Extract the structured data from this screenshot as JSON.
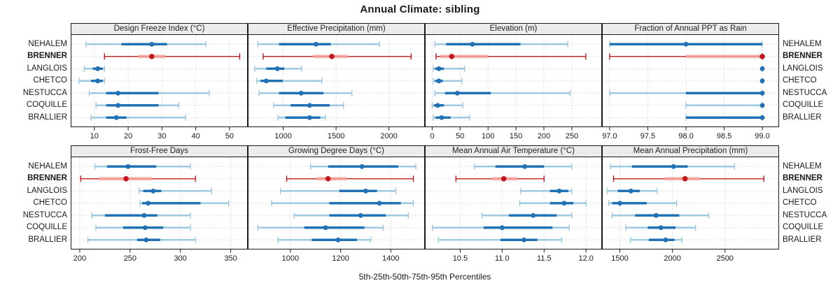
{
  "title": "Annual Climate: sibling",
  "caption": "5th-25th-50th-75th-95th Percentiles",
  "colors": {
    "blue_dark": "#2171B5",
    "blue_light": "#9ECAE1",
    "red_dark": "#C0181D",
    "red_light": "#F5A8A1",
    "grid": "#C9C9C9",
    "strip_bg": "#ECECEC",
    "panel_border": "#1A1A1A",
    "background": "#FFFFFF"
  },
  "chart_data": {
    "type": "dotplot",
    "description": "Trellis dot plot of 5th-25th-50th-75th-95th percentile ranges per site; BRENNER highlighted in red",
    "rows": [
      "NEHALEM",
      "BRENNER",
      "LANGLOIS",
      "CHETCO",
      "NESTUCCA",
      "COQUILLE",
      "BRALLIER"
    ],
    "highlight_row": "BRENNER",
    "percentile_labels": [
      "5th",
      "25th",
      "50th",
      "75th",
      "95th"
    ],
    "legend_position": "none",
    "grid": "dotted",
    "panels": [
      {
        "title": "Design Freeze Index (°C)",
        "band": "top",
        "xlim": [
          3,
          55.4
        ],
        "ticks": [
          10,
          20,
          30,
          40,
          50
        ],
        "tick_labels": [
          "10",
          "20",
          "30",
          "40",
          "50"
        ],
        "values": [
          [
            7.5,
            18,
            27,
            31.5,
            43
          ],
          [
            13,
            23,
            27,
            31,
            53
          ],
          [
            7,
            9.5,
            11,
            12.5,
            13
          ],
          [
            5.5,
            9,
            11,
            12.5,
            13
          ],
          [
            8.5,
            13.5,
            17,
            29,
            44
          ],
          [
            10.5,
            13.5,
            17,
            29,
            35
          ],
          [
            9,
            13.5,
            16.5,
            19.5,
            37
          ]
        ]
      },
      {
        "title": "Effective Precipitation (mm)",
        "band": "top",
        "xlim": [
          665,
          2340
        ],
        "ticks": [
          1000,
          1500,
          2000
        ],
        "tick_labels": [
          "1000",
          "1500",
          "2000"
        ],
        "values": [
          [
            760,
            960,
            1310,
            1450,
            1910
          ],
          [
            810,
            1280,
            1460,
            1610,
            2210
          ],
          [
            730,
            840,
            945,
            1010,
            1175
          ],
          [
            750,
            785,
            840,
            995,
            1365
          ],
          [
            770,
            960,
            1170,
            1380,
            1650
          ],
          [
            910,
            1070,
            1250,
            1440,
            1570
          ],
          [
            950,
            1020,
            1250,
            1350,
            1400
          ]
        ]
      },
      {
        "title": "Elevation (m)",
        "band": "top",
        "xlim": [
          -13,
          304
        ],
        "ticks": [
          0,
          50,
          100,
          150,
          200,
          250
        ],
        "tick_labels": [
          "0",
          "50",
          "100",
          "150",
          "200",
          "250"
        ],
        "values": [
          [
            5,
            25,
            72,
            158,
            243
          ],
          [
            7,
            15,
            35,
            100,
            275
          ],
          [
            2,
            5,
            12,
            21,
            58
          ],
          [
            2,
            5,
            12,
            19,
            53
          ],
          [
            5,
            23,
            45,
            105,
            247
          ],
          [
            0,
            3,
            10,
            21,
            55
          ],
          [
            2,
            6,
            17,
            33,
            67
          ]
        ]
      },
      {
        "title": "Fraction of Annual PPT as Rain",
        "band": "top",
        "xlim": [
          96.9,
          99.22
        ],
        "ticks": [
          97.0,
          97.5,
          98.0,
          98.5,
          99.0
        ],
        "tick_labels": [
          "97.0",
          "97.5",
          "98.0",
          "98.5",
          "99.0"
        ],
        "values": [
          [
            97,
            97,
            98,
            99,
            99
          ],
          [
            97,
            98,
            99,
            99,
            99
          ],
          [
            99,
            99,
            99,
            99,
            99
          ],
          [
            99,
            99,
            99,
            99,
            99
          ],
          [
            97,
            98,
            99,
            99,
            99
          ],
          [
            98,
            99,
            99,
            99,
            99
          ],
          [
            98,
            98,
            99,
            99,
            99
          ]
        ]
      },
      {
        "title": "Frost-Free Days",
        "band": "bottom",
        "xlim": [
          191,
          367
        ],
        "ticks": [
          200,
          250,
          300,
          350
        ],
        "tick_labels": [
          "200",
          "250",
          "300",
          "350"
        ],
        "values": [
          [
            215,
            227,
            248,
            276,
            310
          ],
          [
            201,
            219,
            246,
            272,
            315
          ],
          [
            259,
            263,
            273,
            281,
            331
          ],
          [
            260,
            262,
            268,
            320,
            348
          ],
          [
            212,
            225,
            264,
            277,
            310
          ],
          [
            216,
            243,
            265,
            283,
            310
          ],
          [
            208,
            257,
            266,
            280,
            315
          ]
        ]
      },
      {
        "title": "Growing Degree Days (°C)",
        "band": "bottom",
        "xlim": [
          830,
          1536
        ],
        "ticks": [
          1000,
          1200,
          1400
        ],
        "tick_labels": [
          "1000",
          "1200",
          "1400"
        ],
        "values": [
          [
            1080,
            1150,
            1285,
            1430,
            1500
          ],
          [
            985,
            1105,
            1150,
            1225,
            1490
          ],
          [
            960,
            1195,
            1300,
            1345,
            1420
          ],
          [
            925,
            1155,
            1355,
            1440,
            1490
          ],
          [
            1015,
            1155,
            1280,
            1380,
            1470
          ],
          [
            870,
            1055,
            1140,
            1295,
            1370
          ],
          [
            950,
            1085,
            1190,
            1265,
            1320
          ]
        ]
      },
      {
        "title": "Mean Annual Air Temperature (°C)",
        "band": "bottom",
        "xlim": [
          10.08,
          12.19
        ],
        "ticks": [
          10.5,
          11.0,
          11.5,
          12.0
        ],
        "tick_labels": [
          "10.5",
          "11.0",
          "11.5",
          "12.0"
        ],
        "values": [
          [
            10.67,
            10.92,
            11.27,
            11.5,
            11.83
          ],
          [
            10.45,
            10.88,
            11.02,
            11.18,
            11.5
          ],
          [
            11.22,
            11.57,
            11.68,
            11.79,
            11.83
          ],
          [
            11.21,
            11.57,
            11.74,
            11.85,
            12.0
          ],
          [
            10.76,
            11.08,
            11.37,
            11.65,
            11.83
          ],
          [
            10.17,
            10.78,
            11.0,
            11.6,
            11.8
          ],
          [
            10.24,
            10.98,
            11.26,
            11.42,
            11.71
          ]
        ]
      },
      {
        "title": "Mean Annual Precipitation (mm)",
        "band": "bottom",
        "xlim": [
          1330,
          3015
        ],
        "ticks": [
          1500,
          2000,
          2500
        ],
        "tick_labels": [
          "1500",
          "2000",
          "2500"
        ],
        "values": [
          [
            1410,
            1615,
            2010,
            2145,
            2590
          ],
          [
            1440,
            1930,
            2120,
            2265,
            2870
          ],
          [
            1380,
            1480,
            1605,
            1690,
            1855
          ],
          [
            1395,
            1425,
            1500,
            1755,
            2040
          ],
          [
            1425,
            1645,
            1845,
            2065,
            2345
          ],
          [
            1555,
            1765,
            1890,
            2030,
            2220
          ],
          [
            1600,
            1775,
            1935,
            2020,
            2090
          ]
        ]
      }
    ]
  }
}
